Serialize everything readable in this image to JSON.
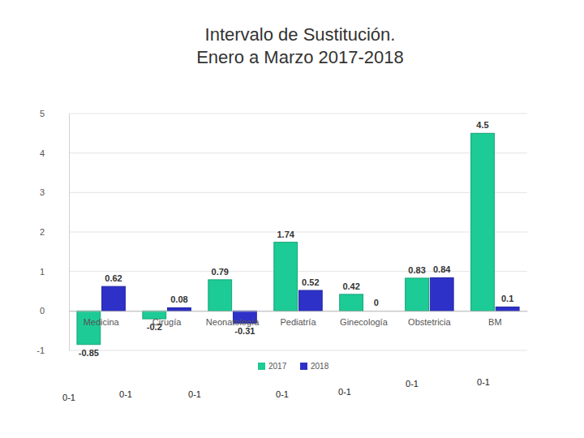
{
  "chart_data": {
    "type": "bar",
    "title": "Intervalo de Sustitución.",
    "subtitle": "Enero a Marzo 2017-2018",
    "categories": [
      "Medicina",
      "Cirugía",
      "Neonatología",
      "Pediatría",
      "Ginecología",
      "Obstetricia",
      "BM"
    ],
    "series": [
      {
        "name": "2017",
        "color": "#1ccb95",
        "values": [
          -0.85,
          -0.2,
          0.79,
          1.74,
          0.42,
          0.83,
          4.5
        ]
      },
      {
        "name": "2018",
        "color": "#2e31c8",
        "values": [
          0.62,
          0.08,
          -0.31,
          0.52,
          0,
          0.84,
          0.1
        ]
      }
    ],
    "ylim": [
      -1,
      5
    ],
    "yticks": [
      -1,
      0,
      1,
      2,
      3,
      4,
      5
    ],
    "grid": true,
    "legend": "bottom",
    "data_labels": true,
    "annotations": [
      "0-1",
      "0-1",
      "0-1",
      "0-1",
      "0-1",
      "0-1",
      "0-1"
    ]
  }
}
